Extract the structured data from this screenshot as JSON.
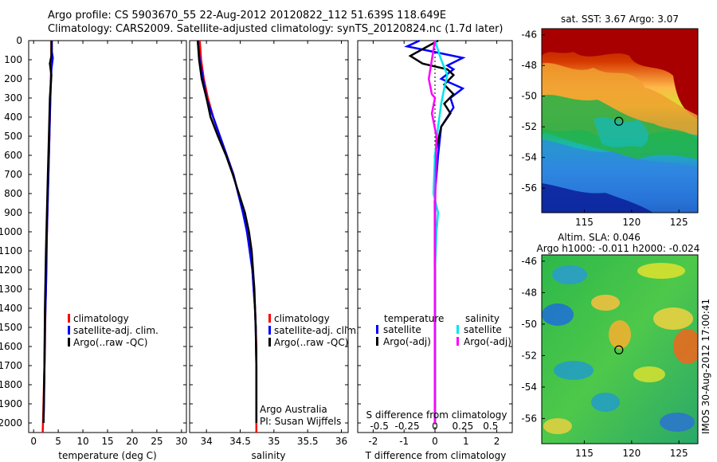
{
  "header": {
    "line1": "Argo profile: CS 5903670_55 22-Aug-2012 20120822_112 51.639S 118.649E",
    "line2": "Climatology: CARS2009. Satellite-adjusted climatology: synTS_20120824.nc (1.7d later)"
  },
  "depth_ticks": [
    0,
    100,
    200,
    300,
    400,
    500,
    600,
    700,
    800,
    900,
    1000,
    1100,
    1200,
    1300,
    1400,
    1500,
    1600,
    1700,
    1800,
    1900,
    2000
  ],
  "colors": {
    "climatology": "#ff0000",
    "satellite": "#0000ff",
    "argo": "#000000",
    "cyan": "#00e5ee",
    "magenta": "#ff00ff"
  },
  "chart_data": [
    {
      "type": "line",
      "xlabel": "temperature (deg C)",
      "ylabel": "",
      "xlim": [
        -1,
        31
      ],
      "ylim": [
        0,
        2050
      ],
      "xticks": [
        0,
        5,
        10,
        15,
        20,
        25,
        30
      ],
      "legend": {
        "position": "center",
        "entries": [
          "climatology",
          "satellite-adj. clim.",
          "Argo(..raw -QC)"
        ]
      },
      "series": [
        {
          "name": "climatology",
          "color": "#ff0000",
          "x": [
            3.6,
            3.6,
            3.5,
            3.3,
            3.1,
            2.9,
            2.7,
            2.6,
            2.4,
            2.3,
            2.1,
            1.95,
            1.85
          ],
          "y": [
            0,
            100,
            200,
            400,
            600,
            800,
            1000,
            1200,
            1400,
            1600,
            1800,
            1950,
            2050
          ]
        },
        {
          "name": "satellite-adj. clim.",
          "color": "#0000ff",
          "x": [
            3.7,
            3.7,
            3.9,
            3.6,
            3.4,
            3.2,
            3.0,
            2.8,
            2.6,
            2.5,
            2.3,
            2.2,
            2.1,
            2.0
          ],
          "y": [
            0,
            60,
            90,
            150,
            300,
            500,
            700,
            900,
            1100,
            1300,
            1500,
            1700,
            1900,
            2000
          ]
        },
        {
          "name": "Argo(..raw -QC)",
          "color": "#000000",
          "x": [
            3.6,
            3.6,
            3.3,
            3.6,
            3.3,
            3.1,
            2.9,
            2.7,
            2.5,
            2.3,
            2.2,
            2.0
          ],
          "y": [
            0,
            80,
            120,
            180,
            300,
            500,
            700,
            900,
            1100,
            1400,
            1700,
            2000
          ]
        }
      ],
      "annotation_lines": []
    },
    {
      "type": "line",
      "xlabel": "salinity",
      "ylabel": "",
      "xlim": [
        33.75,
        36.1
      ],
      "ylim": [
        0,
        2050
      ],
      "xticks": [
        34,
        34.5,
        35,
        35.5,
        36
      ],
      "legend": {
        "position": "center-right",
        "entries": [
          "climatology",
          "satellite-adj. clim.",
          "Argo(..raw -QC)"
        ]
      },
      "annotation_lines": [
        "Argo Australia",
        "PI: Susan Wijffels"
      ],
      "series": [
        {
          "name": "climatology",
          "color": "#ff0000",
          "x": [
            33.9,
            33.92,
            33.96,
            34.02,
            34.1,
            34.2,
            34.3,
            34.4,
            34.47,
            34.55,
            34.6,
            34.65,
            34.68,
            34.7,
            34.72,
            34.73,
            34.74,
            34.74,
            34.74
          ],
          "y": [
            0,
            100,
            200,
            300,
            400,
            500,
            600,
            700,
            800,
            900,
            1000,
            1100,
            1200,
            1300,
            1400,
            1500,
            1600,
            1800,
            2050
          ]
        },
        {
          "name": "satellite-adj. clim.",
          "color": "#0000ff",
          "x": [
            33.87,
            33.9,
            33.95,
            34.0,
            34.1,
            34.2,
            34.3,
            34.4,
            34.47,
            34.54,
            34.6,
            34.64,
            34.68,
            34.7,
            34.72,
            34.73,
            34.74,
            34.74
          ],
          "y": [
            0,
            100,
            200,
            300,
            400,
            500,
            600,
            700,
            800,
            900,
            1000,
            1100,
            1200,
            1300,
            1400,
            1500,
            1700,
            2000
          ]
        },
        {
          "name": "Argo(..raw -QC)",
          "color": "#000000",
          "x": [
            33.87,
            33.89,
            33.93,
            34.0,
            34.06,
            34.17,
            34.29,
            34.39,
            34.48,
            34.57,
            34.63,
            34.67,
            34.69,
            34.71,
            34.72,
            34.73,
            34.74,
            34.74
          ],
          "y": [
            0,
            100,
            200,
            300,
            400,
            500,
            600,
            700,
            800,
            900,
            1000,
            1100,
            1200,
            1300,
            1400,
            1500,
            1700,
            2000
          ]
        }
      ]
    },
    {
      "type": "line",
      "xlabel": "T difference from climatology",
      "title": "S difference from climatology",
      "ylabel": "",
      "xlim": [
        -2.5,
        2.5
      ],
      "ylim": [
        0,
        2050
      ],
      "xticks": [
        -2,
        -1,
        0,
        1,
        2
      ],
      "top_ticks": [
        -0.5,
        -0.25,
        0,
        0.25,
        0.5
      ],
      "legend": {
        "position": "center",
        "groups": [
          "temperature",
          "salinity"
        ],
        "entries": [
          "satellite",
          "Argo(-adj)",
          "satellite",
          "Argo(-adj)"
        ]
      },
      "annotation_lines": [],
      "series": [
        {
          "name": "temperature satellite",
          "color": "#0000ff",
          "x": [
            -0.5,
            -0.9,
            0.0,
            0.9,
            0.4,
            0.6,
            0.2,
            0.9,
            0.5,
            0.6,
            0.2,
            0.1,
            0.0,
            0.0,
            0.0,
            0.0,
            0.0
          ],
          "y": [
            0,
            30,
            60,
            90,
            130,
            150,
            200,
            250,
            300,
            350,
            450,
            600,
            800,
            1000,
            1300,
            1600,
            2000
          ]
        },
        {
          "name": "temperature Argo(-adj)",
          "color": "#000000",
          "x": [
            0.1,
            -0.8,
            -0.4,
            0.4,
            0.6,
            0.3,
            0.6,
            0.3,
            0.5,
            0.2,
            0.0,
            0.0,
            0.0,
            0.0
          ],
          "y": [
            0,
            80,
            120,
            150,
            180,
            230,
            280,
            330,
            380,
            450,
            600,
            900,
            1400,
            2000
          ]
        },
        {
          "name": "salinity satellite",
          "color": "#00e5ee",
          "x": [
            0.0,
            0.1,
            0.2,
            0.4,
            0.3,
            0.2,
            0.1,
            0.0,
            -0.05,
            0.1,
            0.05,
            0.0,
            0.0,
            0.0
          ],
          "y": [
            0,
            50,
            100,
            180,
            250,
            330,
            450,
            600,
            800,
            900,
            1000,
            1200,
            1600,
            2000
          ]
        },
        {
          "name": "salinity Argo(-adj)",
          "color": "#ff00ff",
          "x": [
            0.0,
            -0.1,
            -0.2,
            -0.1,
            0.0,
            -0.1,
            0.05,
            0.0,
            0.0,
            0.0
          ],
          "y": [
            0,
            100,
            200,
            280,
            300,
            380,
            500,
            900,
            1500,
            2000
          ]
        }
      ]
    }
  ],
  "maps": {
    "top": {
      "title": "sat. SST: 3.67 Argo: 3.07",
      "yticks": [
        "-46",
        "-48",
        "-50",
        "-52",
        "-54",
        "-56"
      ],
      "xticks": [
        "115",
        "120",
        "125"
      ]
    },
    "bottom": {
      "title1": "Altim. SLA: 0.046",
      "title2": "Argo h1000: -0.011 h2000: -0.024",
      "yticks": [
        "-46",
        "-48",
        "-50",
        "-52",
        "-54",
        "-56"
      ],
      "xticks": [
        "115",
        "120",
        "125"
      ]
    },
    "xlim": [
      110.5,
      127
    ],
    "ylim": [
      -57.6,
      -45.6
    ],
    "marker": {
      "lon": 118.649,
      "lat": -51.639
    }
  },
  "footer": {
    "stamp": "IMOS 30-Aug-2012 17:00:41"
  }
}
